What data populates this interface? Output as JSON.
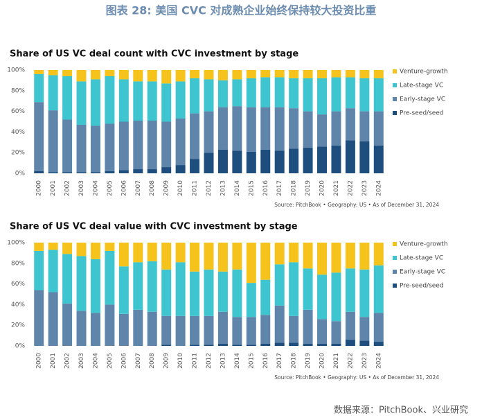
{
  "header": {
    "title": "图表 28:      美国 CVC 对成熟企业始终保持较大投资比重"
  },
  "footer": {
    "source": "数据来源：PitchBook、兴业研究"
  },
  "chart_data": [
    {
      "type": "bar",
      "stacked": true,
      "title": "Share of US VC deal count with CVC investment by stage",
      "note": "Source: PitchBook  •  Geography: US  •  As of December 31, 2024",
      "categories": [
        "2000",
        "2001",
        "2002",
        "2003",
        "2004",
        "2005",
        "2006",
        "2007",
        "2008",
        "2009",
        "2010",
        "2011",
        "2012",
        "2013",
        "2014",
        "2015",
        "2016",
        "2017",
        "2018",
        "2019",
        "2020",
        "2021",
        "2022",
        "2023",
        "2024"
      ],
      "series": [
        {
          "name": "Pre-seed/seed",
          "color": "#1d4e7e",
          "values": [
            2,
            1,
            1,
            1,
            1,
            2,
            3,
            4,
            4,
            6,
            8,
            14,
            20,
            23,
            22,
            21,
            23,
            22,
            24,
            25,
            26,
            27,
            32,
            31,
            27
          ]
        },
        {
          "name": "Early-stage VC",
          "color": "#5f86aa",
          "values": [
            67,
            60,
            51,
            46,
            45,
            46,
            47,
            47,
            47,
            44,
            45,
            44,
            40,
            41,
            43,
            43,
            41,
            42,
            39,
            35,
            31,
            33,
            31,
            29,
            33
          ]
        },
        {
          "name": "Late-stage VC",
          "color": "#3fc5cf",
          "values": [
            27,
            34,
            42,
            42,
            45,
            46,
            41,
            38,
            38,
            37,
            36,
            34,
            31,
            26,
            26,
            28,
            29,
            29,
            29,
            32,
            35,
            33,
            30,
            32,
            32
          ]
        },
        {
          "name": "Venture-growth",
          "color": "#f6c31c",
          "values": [
            4,
            5,
            6,
            11,
            9,
            6,
            9,
            11,
            11,
            13,
            11,
            8,
            9,
            10,
            9,
            8,
            7,
            7,
            8,
            8,
            8,
            7,
            7,
            8,
            8
          ]
        }
      ],
      "ylim": [
        0,
        100
      ],
      "yticks": [
        {
          "value": 0,
          "label": "0%"
        },
        {
          "value": 20,
          "label": "20%"
        },
        {
          "value": 40,
          "label": "40%"
        },
        {
          "value": 60,
          "label": "60%"
        },
        {
          "value": 80,
          "label": "80%"
        },
        {
          "value": 100,
          "label": "100%"
        }
      ],
      "grid": false,
      "legend": "right"
    },
    {
      "type": "bar",
      "stacked": true,
      "title": "Share of US VC deal value with CVC investment by stage",
      "note": "Source: PitchBook  •  Geography: US  •  As of December 31, 2024",
      "categories": [
        "2000",
        "2001",
        "2002",
        "2003",
        "2004",
        "2005",
        "2006",
        "2007",
        "2008",
        "2009",
        "2010",
        "2011",
        "2012",
        "2013",
        "2014",
        "2015",
        "2016",
        "2017",
        "2018",
        "2019",
        "2020",
        "2021",
        "2022",
        "2023",
        "2024"
      ],
      "series": [
        {
          "name": "Pre-seed/seed",
          "color": "#1d4e7e",
          "values": [
            0,
            0,
            0,
            0,
            0,
            0,
            0,
            0,
            0,
            1,
            0,
            1,
            1,
            2,
            1,
            1,
            2,
            3,
            3,
            2,
            2,
            2,
            6,
            5,
            4
          ]
        },
        {
          "name": "Early-stage VC",
          "color": "#5f86aa",
          "values": [
            54,
            52,
            41,
            34,
            32,
            40,
            31,
            35,
            33,
            28,
            29,
            28,
            28,
            31,
            27,
            27,
            28,
            36,
            26,
            33,
            24,
            22,
            27,
            23,
            28
          ]
        },
        {
          "name": "Late-stage VC",
          "color": "#3fc5cf",
          "values": [
            38,
            41,
            48,
            53,
            52,
            52,
            46,
            46,
            49,
            45,
            52,
            43,
            45,
            39,
            46,
            33,
            34,
            40,
            52,
            40,
            43,
            47,
            42,
            46,
            46
          ]
        },
        {
          "name": "Venture-growth",
          "color": "#f6c31c",
          "values": [
            8,
            7,
            11,
            13,
            16,
            8,
            23,
            19,
            18,
            26,
            19,
            28,
            26,
            28,
            26,
            39,
            36,
            21,
            19,
            25,
            31,
            29,
            25,
            26,
            22
          ]
        }
      ],
      "ylim": [
        0,
        100
      ],
      "yticks": [
        {
          "value": 0,
          "label": "0%"
        },
        {
          "value": 20,
          "label": "20%"
        },
        {
          "value": 40,
          "label": "40%"
        },
        {
          "value": 60,
          "label": "60%"
        },
        {
          "value": 80,
          "label": "80%"
        },
        {
          "value": 100,
          "label": "100%"
        }
      ],
      "grid": false,
      "legend": "right"
    }
  ]
}
